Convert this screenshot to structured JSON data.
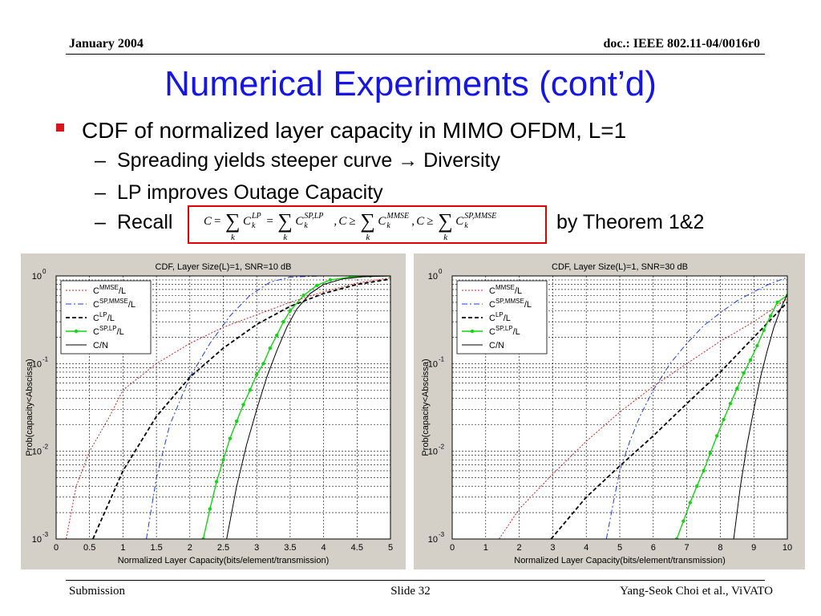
{
  "header": {
    "date": "January 2004",
    "doc": "doc.: IEEE 802.11-04/0016r0"
  },
  "slide_title": "Numerical Experiments (cont’d)",
  "bullet": "CDF of normalized layer capacity in MIMO OFDM, L=1",
  "subbullets": [
    "Spreading yields steeper curve → Diversity",
    "LP improves Outage Capacity",
    "Recall"
  ],
  "theorem_text": "by Theorem 1&2",
  "formula": {
    "tokens": [
      "C",
      "=",
      "∑",
      "C",
      "LP",
      "=",
      "∑",
      "C",
      "SP,LP",
      ",",
      "C",
      "≥",
      "∑",
      "C",
      "MMSE",
      ",",
      "C",
      "≥",
      "∑",
      "C",
      "SP,MMSE"
    ],
    "index": "k"
  },
  "footer": {
    "left": "Submission",
    "center": "Slide 32",
    "right": "Yang-Seok Choi et al., ViVATO"
  },
  "colors": {
    "title": "#1515e6",
    "bullet": "#d9141b",
    "formula_border": "#e00000",
    "mmse": "#e0201a",
    "sp_mmse": "#1a3ce8",
    "lp": "#000000",
    "sp_lp": "#14d414",
    "c_over_n": "#000000"
  },
  "chart_data": [
    {
      "type": "line",
      "title": "CDF, Layer Size(L)=1, SNR=10 dB",
      "xlabel": "Normalized Layer Capacity(bits/element/transmission)",
      "ylabel": "Prob(capacity<Abscissa)",
      "xlim": [
        0,
        5
      ],
      "ylim": [
        0.001,
        1
      ],
      "yscale": "log",
      "xticks": [
        "0",
        "0.5",
        "1",
        "1.5",
        "2",
        "2.5",
        "3",
        "3.5",
        "4",
        "4.5",
        "5"
      ],
      "yticks_base": "10",
      "yticks_exp": [
        "-3",
        "-2",
        "-1",
        "0"
      ],
      "grid": true,
      "legend_position": "top-left",
      "series": [
        {
          "name": "C",
          "sup": "MMSE",
          "suffix": "/L",
          "style": "dotted",
          "color": "#e0201a",
          "x": [
            0.15,
            0.3,
            0.5,
            0.8,
            1.0,
            1.5,
            2.0,
            2.5,
            3.0,
            3.5,
            4.0,
            4.5,
            5.0
          ],
          "y": [
            0.001,
            0.004,
            0.01,
            0.025,
            0.05,
            0.1,
            0.17,
            0.26,
            0.36,
            0.5,
            0.66,
            0.83,
            0.95
          ]
        },
        {
          "name": "C",
          "sup": "SP,MMSE",
          "suffix": "/L",
          "style": "dashdot",
          "color": "#1a3ce8",
          "x": [
            1.35,
            1.5,
            1.7,
            2.0,
            2.3,
            2.6,
            2.9,
            3.2,
            3.5,
            4.0
          ],
          "y": [
            0.001,
            0.005,
            0.02,
            0.07,
            0.17,
            0.35,
            0.6,
            0.85,
            0.97,
            1.0
          ]
        },
        {
          "name": "C",
          "sup": "LP",
          "suffix": "/L",
          "style": "dashed",
          "color": "#000000",
          "x": [
            0.55,
            1.0,
            1.5,
            2.0,
            2.5,
            3.0,
            3.5,
            4.0,
            4.5,
            5.0
          ],
          "y": [
            0.001,
            0.006,
            0.025,
            0.07,
            0.15,
            0.28,
            0.45,
            0.63,
            0.8,
            0.92
          ]
        },
        {
          "name": "C",
          "sup": "SP,LP",
          "suffix": "/L",
          "style": "solid-marker",
          "color": "#14d414",
          "x": [
            2.2,
            2.3,
            2.4,
            2.5,
            2.6,
            2.7,
            2.8,
            2.9,
            3.0,
            3.1,
            3.2,
            3.3,
            3.4,
            3.5,
            3.7,
            3.9,
            4.1,
            4.4,
            4.7,
            5.0
          ],
          "y": [
            0.001,
            0.0022,
            0.0045,
            0.008,
            0.014,
            0.022,
            0.034,
            0.05,
            0.075,
            0.1,
            0.15,
            0.21,
            0.3,
            0.4,
            0.6,
            0.78,
            0.9,
            0.97,
            1.0,
            1.0
          ]
        },
        {
          "name": "C/N",
          "sup": "",
          "suffix": "",
          "style": "solid",
          "color": "#000000",
          "x": [
            2.55,
            2.7,
            2.85,
            3.0,
            3.15,
            3.3,
            3.45,
            3.6,
            3.8,
            4.0,
            4.3,
            4.6,
            5.0
          ],
          "y": [
            0.001,
            0.004,
            0.012,
            0.03,
            0.07,
            0.14,
            0.26,
            0.42,
            0.63,
            0.8,
            0.93,
            0.98,
            1.0
          ]
        }
      ]
    },
    {
      "type": "line",
      "title": "CDF, Layer Size(L)=1, SNR=30 dB",
      "xlabel": "Normalized Layer Capacity(bits/element/transmission)",
      "ylabel": "Prob(capacity<Abscissa)",
      "xlim": [
        0,
        10
      ],
      "ylim": [
        0.001,
        1
      ],
      "yscale": "log",
      "xticks": [
        "0",
        "1",
        "2",
        "3",
        "4",
        "5",
        "6",
        "7",
        "8",
        "9",
        "10"
      ],
      "yticks_base": "10",
      "yticks_exp": [
        "-3",
        "-2",
        "-1",
        "0"
      ],
      "grid": true,
      "legend_position": "top-left",
      "series": [
        {
          "name": "C",
          "sup": "MMSE",
          "suffix": "/L",
          "style": "dotted",
          "color": "#e0201a",
          "x": [
            1.4,
            2.0,
            3.0,
            4.0,
            5.0,
            6.0,
            7.0,
            8.0,
            9.0,
            10.0
          ],
          "y": [
            0.001,
            0.0022,
            0.0055,
            0.013,
            0.028,
            0.055,
            0.1,
            0.18,
            0.3,
            0.55
          ]
        },
        {
          "name": "C",
          "sup": "SP,MMSE",
          "suffix": "/L",
          "style": "dashdot",
          "color": "#1a3ce8",
          "x": [
            4.6,
            4.8,
            5.0,
            5.3,
            5.6,
            6.0,
            6.5,
            7.0,
            7.5,
            8.0,
            8.5,
            9.0,
            9.5,
            10.0
          ],
          "y": [
            0.001,
            0.0025,
            0.006,
            0.013,
            0.025,
            0.05,
            0.1,
            0.17,
            0.27,
            0.38,
            0.52,
            0.66,
            0.82,
            0.96
          ]
        },
        {
          "name": "C",
          "sup": "LP",
          "suffix": "/L",
          "style": "dashed",
          "color": "#000000",
          "x": [
            2.95,
            4.0,
            5.0,
            6.0,
            7.0,
            8.0,
            9.0,
            10.0
          ],
          "y": [
            0.001,
            0.003,
            0.0068,
            0.015,
            0.035,
            0.08,
            0.2,
            0.5
          ]
        },
        {
          "name": "C",
          "sup": "SP,LP",
          "suffix": "/L",
          "style": "solid-marker",
          "color": "#14d414",
          "x": [
            6.7,
            6.9,
            7.1,
            7.3,
            7.5,
            7.7,
            7.9,
            8.1,
            8.3,
            8.5,
            8.7,
            8.9,
            9.1,
            9.3,
            9.5,
            9.7,
            10.0
          ],
          "y": [
            0.001,
            0.0016,
            0.0026,
            0.004,
            0.006,
            0.0095,
            0.015,
            0.023,
            0.035,
            0.052,
            0.078,
            0.11,
            0.16,
            0.24,
            0.35,
            0.5,
            0.6
          ]
        },
        {
          "name": "C/N",
          "sup": "",
          "suffix": "",
          "style": "solid",
          "color": "#000000",
          "x": [
            8.4,
            8.6,
            8.8,
            9.0,
            9.2,
            9.4,
            9.6,
            9.8,
            10.0
          ],
          "y": [
            0.001,
            0.004,
            0.012,
            0.03,
            0.07,
            0.14,
            0.26,
            0.42,
            0.62
          ]
        }
      ]
    }
  ]
}
